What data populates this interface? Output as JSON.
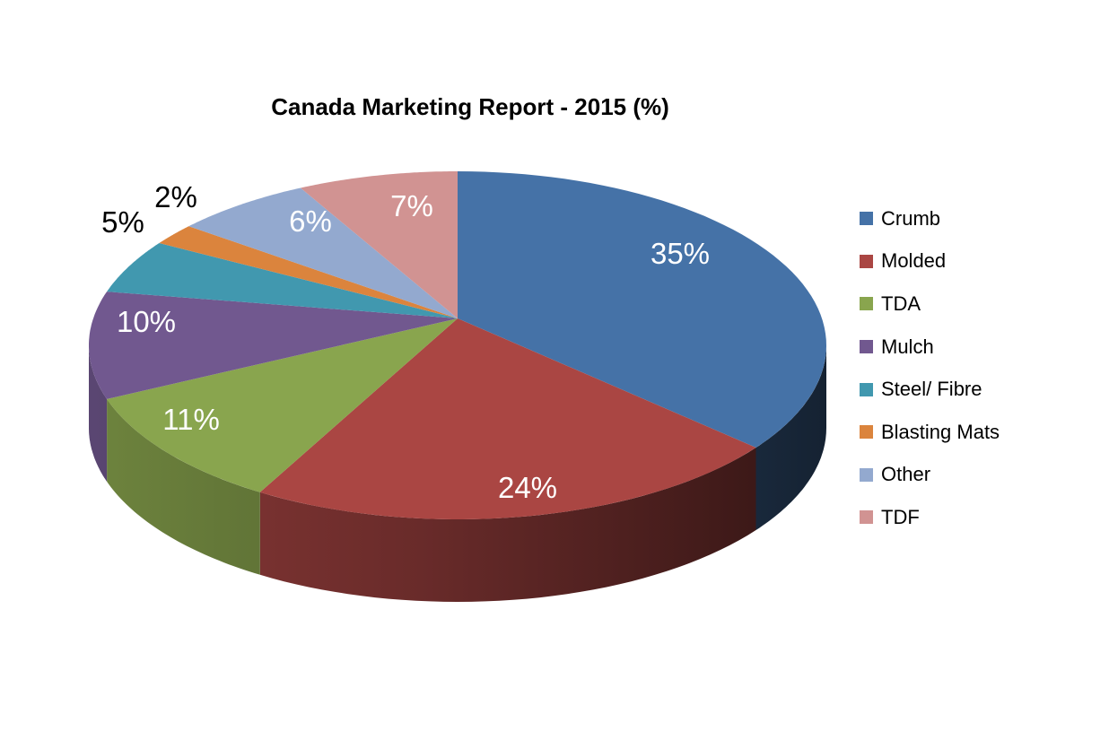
{
  "chart_data": {
    "type": "pie",
    "style": "3d",
    "title": "Canada Marketing Report - 2015 (%)",
    "categories": [
      "Crumb",
      "Molded",
      "TDA",
      "Mulch",
      "Steel/ Fibre",
      "Blasting Mats",
      "Other",
      "TDF"
    ],
    "values": [
      35,
      24,
      11,
      10,
      5,
      2,
      6,
      7
    ],
    "labels": [
      "35%",
      "24%",
      "11%",
      "10%",
      "5%",
      "2%",
      "6%",
      "7%"
    ],
    "colors": [
      "#4572A7",
      "#AA4643",
      "#89A54E",
      "#71588F",
      "#4198AF",
      "#DB843D",
      "#93A9CF",
      "#D19392"
    ],
    "legend": "right"
  }
}
